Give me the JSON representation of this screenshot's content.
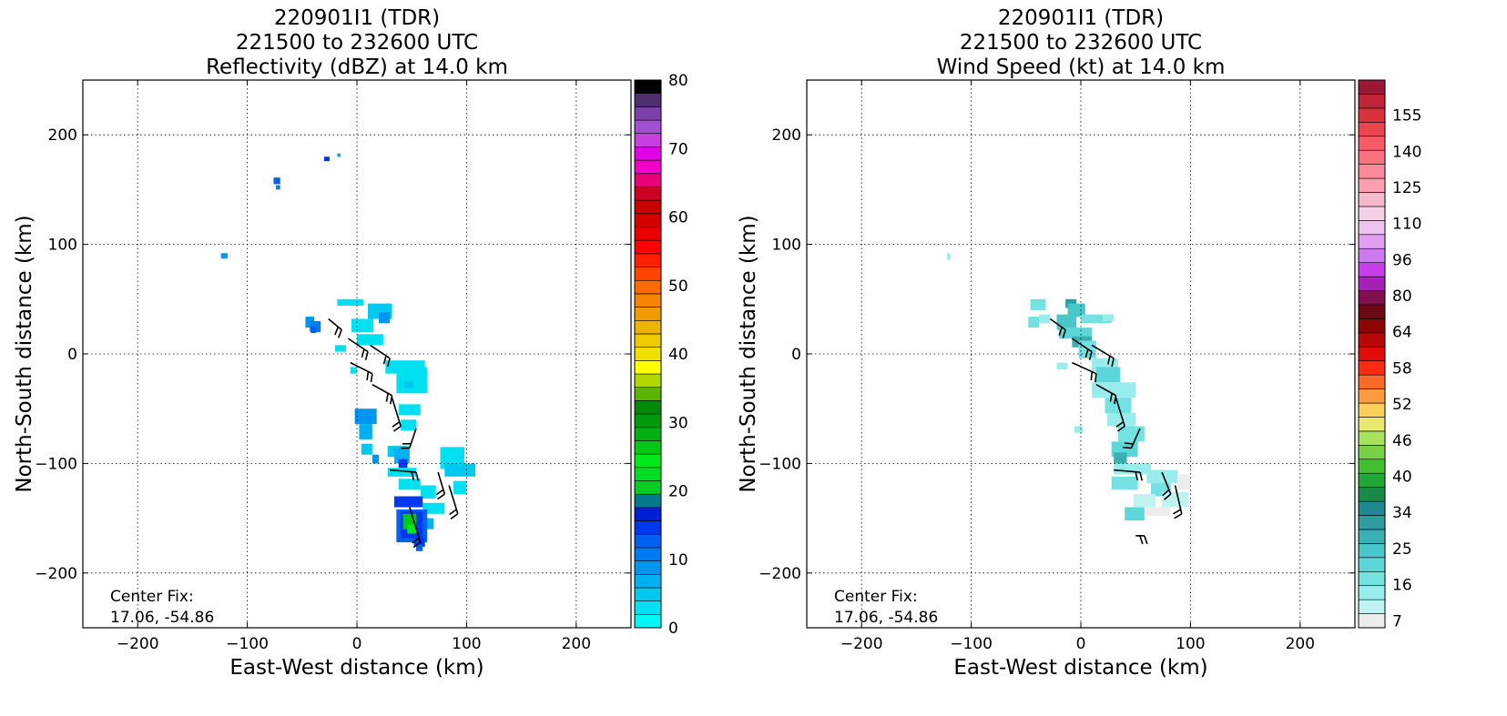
{
  "chart_data": [
    {
      "type": "heatmap",
      "title": [
        "220901I1 (TDR)",
        "221500 to 232600 UTC",
        "Reflectivity (dBZ) at 14.0 km"
      ],
      "xlabel": "East-West distance (km)",
      "ylabel": "North-South distance (km)",
      "xlim": [
        -250,
        250
      ],
      "ylim": [
        -250,
        250
      ],
      "xticks": [
        -200,
        -100,
        0,
        100,
        200
      ],
      "yticks": [
        -200,
        -100,
        0,
        100,
        200
      ],
      "grid": true,
      "annotation": [
        "Center Fix:",
        "17.06, -54.86"
      ],
      "colorbar": {
        "ticks": [
          0,
          10,
          20,
          30,
          40,
          50,
          60,
          70,
          80
        ],
        "colors": [
          "#00f5f5",
          "#00e0f0",
          "#00c8ee",
          "#00b0f0",
          "#0096f0",
          "#007af0",
          "#0060f0",
          "#0038f0",
          "#0020d8",
          "#007a8a",
          "#00cc22",
          "#00dd22",
          "#00e81a",
          "#00c814",
          "#00b010",
          "#009a0c",
          "#008a08",
          "#5ab400",
          "#b0d800",
          "#ffff00",
          "#f0e000",
          "#eccb00",
          "#eab400",
          "#f09c00",
          "#f58400",
          "#ff6a00",
          "#ff4400",
          "#ff2000",
          "#ff0000",
          "#e80000",
          "#d40000",
          "#c80000",
          "#cc0020",
          "#e6007a",
          "#f000c8",
          "#e000e8",
          "#c840e0",
          "#a050d0",
          "#7c40a8",
          "#50306c",
          "#000000"
        ]
      },
      "echoes": [
        {
          "x": -30,
          "y": 176,
          "w": 5,
          "h": 4,
          "color": "#0038d8"
        },
        {
          "x": -18,
          "y": 180,
          "w": 3,
          "h": 3,
          "color": "#00a8f0"
        },
        {
          "x": -76,
          "y": 155,
          "w": 6,
          "h": 6,
          "color": "#0060f0"
        },
        {
          "x": -74,
          "y": 150,
          "w": 4,
          "h": 4,
          "color": "#007af0"
        },
        {
          "x": -124,
          "y": 87,
          "w": 6,
          "h": 5,
          "color": "#0096f0"
        },
        {
          "x": -47,
          "y": 24,
          "w": 8,
          "h": 10,
          "color": "#0096f0"
        },
        {
          "x": -43,
          "y": 20,
          "w": 10,
          "h": 10,
          "color": "#007af0"
        },
        {
          "x": -42,
          "y": 19,
          "w": 5,
          "h": 6,
          "color": "#0060f0"
        },
        {
          "x": -18,
          "y": 44,
          "w": 24,
          "h": 6,
          "color": "#00e0f0"
        },
        {
          "x": 10,
          "y": 32,
          "w": 22,
          "h": 14,
          "color": "#00c8ee"
        },
        {
          "x": 20,
          "y": 28,
          "w": 10,
          "h": 10,
          "color": "#0096f0"
        },
        {
          "x": -5,
          "y": 20,
          "w": 20,
          "h": 12,
          "color": "#00e0f0"
        },
        {
          "x": 0,
          "y": 8,
          "w": 24,
          "h": 10,
          "color": "#00e0f0"
        },
        {
          "x": -20,
          "y": 2,
          "w": 10,
          "h": 6,
          "color": "#00e0f0"
        },
        {
          "x": -6,
          "y": -18,
          "w": 6,
          "h": 6,
          "color": "#00e0f0"
        },
        {
          "x": 26,
          "y": -18,
          "w": 36,
          "h": 12,
          "color": "#00e0f0"
        },
        {
          "x": 36,
          "y": -36,
          "w": 28,
          "h": 24,
          "color": "#00e0f0"
        },
        {
          "x": 43,
          "y": -31,
          "w": 8,
          "h": 6,
          "color": "#00c8ee"
        },
        {
          "x": 38,
          "y": -56,
          "w": 20,
          "h": 10,
          "color": "#00e0f0"
        },
        {
          "x": 40,
          "y": -70,
          "w": 14,
          "h": 10,
          "color": "#00e0f0"
        },
        {
          "x": -2,
          "y": -64,
          "w": 20,
          "h": 14,
          "color": "#0096f0"
        },
        {
          "x": 2,
          "y": -78,
          "w": 12,
          "h": 14,
          "color": "#00b0f0"
        },
        {
          "x": 4,
          "y": -92,
          "w": 10,
          "h": 10,
          "color": "#00c8ee"
        },
        {
          "x": 14,
          "y": -100,
          "w": 6,
          "h": 8,
          "color": "#0096f0"
        },
        {
          "x": 28,
          "y": -94,
          "w": 20,
          "h": 10,
          "color": "#00c8ee"
        },
        {
          "x": 34,
          "y": -100,
          "w": 14,
          "h": 14,
          "color": "#00b0f0"
        },
        {
          "x": 38,
          "y": -104,
          "w": 8,
          "h": 8,
          "color": "#0038f0"
        },
        {
          "x": 28,
          "y": -112,
          "w": 26,
          "h": 8,
          "color": "#00e0f0"
        },
        {
          "x": 38,
          "y": -124,
          "w": 20,
          "h": 10,
          "color": "#00e0f0"
        },
        {
          "x": 76,
          "y": -105,
          "w": 22,
          "h": 20,
          "color": "#00e0f0"
        },
        {
          "x": 80,
          "y": -112,
          "w": 28,
          "h": 12,
          "color": "#00c8ee"
        },
        {
          "x": 88,
          "y": -128,
          "w": 12,
          "h": 12,
          "color": "#00e0f0"
        },
        {
          "x": 58,
          "y": -132,
          "w": 14,
          "h": 12,
          "color": "#00e0f0"
        },
        {
          "x": 60,
          "y": -146,
          "w": 20,
          "h": 10,
          "color": "#00e0f0"
        },
        {
          "x": 50,
          "y": -160,
          "w": 20,
          "h": 10,
          "color": "#00b0f0"
        },
        {
          "x": 34,
          "y": -140,
          "w": 26,
          "h": 10,
          "color": "#0038f0"
        },
        {
          "x": 36,
          "y": -172,
          "w": 28,
          "h": 30,
          "color": "#0060f0"
        },
        {
          "x": 40,
          "y": -168,
          "w": 20,
          "h": 24,
          "color": "#0038f0"
        },
        {
          "x": 42,
          "y": -160,
          "w": 12,
          "h": 14,
          "color": "#00c814"
        },
        {
          "x": 46,
          "y": -164,
          "w": 8,
          "h": 8,
          "color": "#00e81a"
        },
        {
          "x": 52,
          "y": -176,
          "w": 10,
          "h": 8,
          "color": "#0038f0"
        },
        {
          "x": 54,
          "y": -180,
          "w": 6,
          "h": 6,
          "color": "#0060f0"
        }
      ],
      "barbs": [
        {
          "x": -26,
          "y": 32,
          "x2": -14,
          "y2": 22
        },
        {
          "x": -8,
          "y": 14,
          "x2": 10,
          "y2": 2
        },
        {
          "x": 12,
          "y": 8,
          "x2": 30,
          "y2": -4
        },
        {
          "x": -6,
          "y": -8,
          "x2": 14,
          "y2": -18
        },
        {
          "x": 14,
          "y": -28,
          "x2": 32,
          "y2": -38
        },
        {
          "x": 32,
          "y": -40,
          "x2": 40,
          "y2": -66
        },
        {
          "x": 54,
          "y": -68,
          "x2": 48,
          "y2": -86
        },
        {
          "x": 30,
          "y": -106,
          "x2": 54,
          "y2": -108
        },
        {
          "x": 74,
          "y": -108,
          "x2": 80,
          "y2": -128
        },
        {
          "x": 84,
          "y": -120,
          "x2": 92,
          "y2": -146
        },
        {
          "x": 48,
          "y": -140,
          "x2": 58,
          "y2": -172
        }
      ]
    },
    {
      "type": "heatmap",
      "title": [
        "220901I1 (TDR)",
        "221500 to 232600 UTC",
        "Wind Speed (kt) at 14.0 km"
      ],
      "xlabel": "East-West distance (km)",
      "ylabel": "North-South distance (km)",
      "xlim": [
        -250,
        250
      ],
      "ylim": [
        -250,
        250
      ],
      "xticks": [
        -200,
        -100,
        0,
        100,
        200
      ],
      "yticks": [
        -200,
        -100,
        0,
        100,
        200
      ],
      "grid": true,
      "annotation": [
        "Center Fix:",
        "17.06, -54.86"
      ],
      "colorbar": {
        "tick_labels": [
          "7",
          "16",
          "25",
          "34",
          "40",
          "46",
          "52",
          "58",
          "64",
          "80",
          "96",
          "110",
          "125",
          "140",
          "155"
        ],
        "colors": [
          "#ececec",
          "#c0f2f2",
          "#98ecec",
          "#74e2e2",
          "#5cd6d8",
          "#48c6ca",
          "#38b0b4",
          "#2e9ca0",
          "#208890",
          "#1a8a4a",
          "#20a838",
          "#40c030",
          "#78d048",
          "#a8e060",
          "#e6e870",
          "#fcd058",
          "#fc9a40",
          "#fb6a2a",
          "#fb2a12",
          "#e00c0c",
          "#b80808",
          "#8c0404",
          "#6a0a14",
          "#801050",
          "#a820b8",
          "#c440e8",
          "#d078ee",
          "#e0a0f0",
          "#ecc4ee",
          "#f4d0e6",
          "#f8b8cc",
          "#fca0b0",
          "#fd8a98",
          "#fd7080",
          "#f85a66",
          "#ec4650",
          "#d8323e",
          "#c02436",
          "#9c1636"
        ]
      },
      "echoes": [
        {
          "x": -122,
          "y": 86,
          "w": 3,
          "h": 6,
          "color": "#98ecec"
        },
        {
          "x": -46,
          "y": 40,
          "w": 14,
          "h": 10,
          "color": "#74e2e2"
        },
        {
          "x": -38,
          "y": 28,
          "w": 10,
          "h": 8,
          "color": "#98ecec"
        },
        {
          "x": -48,
          "y": 24,
          "w": 10,
          "h": 10,
          "color": "#74e2e2"
        },
        {
          "x": -14,
          "y": 42,
          "w": 10,
          "h": 8,
          "color": "#2e9ca0"
        },
        {
          "x": -12,
          "y": 34,
          "w": 16,
          "h": 12,
          "color": "#48c6ca"
        },
        {
          "x": -22,
          "y": 22,
          "w": 18,
          "h": 14,
          "color": "#48c6ca"
        },
        {
          "x": -20,
          "y": 14,
          "w": 30,
          "h": 10,
          "color": "#5cd6d8"
        },
        {
          "x": -8,
          "y": 6,
          "w": 18,
          "h": 10,
          "color": "#38b0b4"
        },
        {
          "x": 0,
          "y": 28,
          "w": 28,
          "h": 8,
          "color": "#74e2e2"
        },
        {
          "x": 20,
          "y": 30,
          "w": 10,
          "h": 6,
          "color": "#98ecec"
        },
        {
          "x": -22,
          "y": -14,
          "w": 10,
          "h": 6,
          "color": "#98ecec"
        },
        {
          "x": -2,
          "y": -4,
          "w": 16,
          "h": 16,
          "color": "#74e2e2"
        },
        {
          "x": 10,
          "y": -16,
          "w": 24,
          "h": 12,
          "color": "#98ecec"
        },
        {
          "x": 14,
          "y": -26,
          "w": 22,
          "h": 14,
          "color": "#5cd6d8"
        },
        {
          "x": 10,
          "y": -40,
          "w": 40,
          "h": 14,
          "color": "#98ecec"
        },
        {
          "x": 22,
          "y": -54,
          "w": 24,
          "h": 14,
          "color": "#74e2e2"
        },
        {
          "x": 24,
          "y": -66,
          "w": 26,
          "h": 12,
          "color": "#98ecec"
        },
        {
          "x": 34,
          "y": -80,
          "w": 24,
          "h": 14,
          "color": "#74e2e2"
        },
        {
          "x": -6,
          "y": -72,
          "w": 8,
          "h": 6,
          "color": "#98ecec"
        },
        {
          "x": 28,
          "y": -94,
          "w": 24,
          "h": 14,
          "color": "#5cd6d8"
        },
        {
          "x": 30,
          "y": -100,
          "w": 12,
          "h": 10,
          "color": "#38b0b4"
        },
        {
          "x": 30,
          "y": -110,
          "w": 34,
          "h": 10,
          "color": "#98ecec"
        },
        {
          "x": 28,
          "y": -124,
          "w": 24,
          "h": 12,
          "color": "#74e2e2"
        },
        {
          "x": 60,
          "y": -118,
          "w": 28,
          "h": 12,
          "color": "#98ecec"
        },
        {
          "x": 64,
          "y": -130,
          "w": 18,
          "h": 12,
          "color": "#74e2e2"
        },
        {
          "x": 74,
          "y": -140,
          "w": 24,
          "h": 14,
          "color": "#c0f2f2"
        },
        {
          "x": 88,
          "y": -124,
          "w": 12,
          "h": 14,
          "color": "#ececec"
        },
        {
          "x": 48,
          "y": -140,
          "w": 20,
          "h": 12,
          "color": "#c0f2f2"
        },
        {
          "x": 40,
          "y": -152,
          "w": 18,
          "h": 12,
          "color": "#5cd6d8"
        },
        {
          "x": 58,
          "y": -148,
          "w": 24,
          "h": 8,
          "color": "#ececec"
        }
      ],
      "barbs": [
        {
          "x": -28,
          "y": 32,
          "x2": -14,
          "y2": 22
        },
        {
          "x": -8,
          "y": 14,
          "x2": 10,
          "y2": 2
        },
        {
          "x": 10,
          "y": 8,
          "x2": 30,
          "y2": -4
        },
        {
          "x": -8,
          "y": -8,
          "x2": 14,
          "y2": -18
        },
        {
          "x": 14,
          "y": -28,
          "x2": 32,
          "y2": -38
        },
        {
          "x": 32,
          "y": -40,
          "x2": 40,
          "y2": -66
        },
        {
          "x": 54,
          "y": -68,
          "x2": 46,
          "y2": -86
        },
        {
          "x": 30,
          "y": -106,
          "x2": 54,
          "y2": -108
        },
        {
          "x": 74,
          "y": -108,
          "x2": 82,
          "y2": -128
        },
        {
          "x": 86,
          "y": -120,
          "x2": 92,
          "y2": -146
        },
        {
          "x": 50,
          "y": -166,
          "x2": 58,
          "y2": -166
        }
      ]
    }
  ]
}
